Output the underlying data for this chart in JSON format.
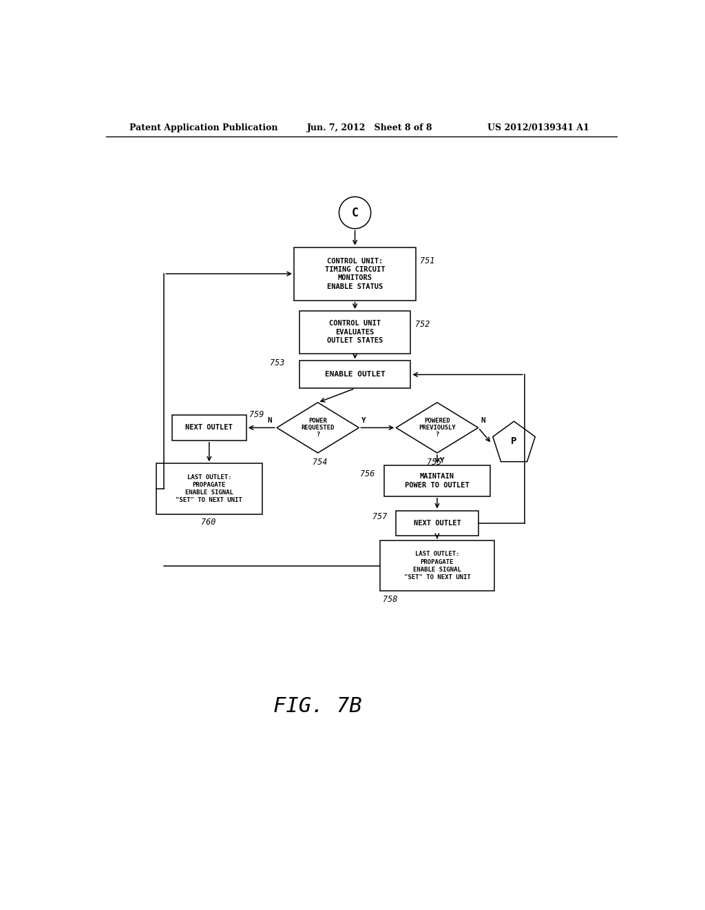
{
  "bg_color": "#ffffff",
  "header_left": "Patent Application Publication",
  "header_mid": "Jun. 7, 2012   Sheet 8 of 8",
  "header_right": "US 2012/0139341 A1",
  "fig_label": "FIG. 7B",
  "node_751_text": "CONTROL UNIT:\nTIMING CIRCUIT\nMONITORS\nENABLE STATUS",
  "node_752_text": "CONTROL UNIT\nEVALUATES\nOUTLET STATES",
  "node_753_text": "ENABLE OUTLET",
  "node_754_text": "POWER\nREQUESTED\n?",
  "node_755_text": "POWERED\nPREVIOUSLY\n?",
  "node_756_text": "MAINTAIN\nPOWER TO OUTLET",
  "node_757r_text": "NEXT OUTLET",
  "node_758_text": "LAST OUTLET:\nPROPAGATE\nENABLE SIGNAL\n\"SET\" TO NEXT UNIT",
  "node_759l_text": "NEXT OUTLET",
  "node_760_text": "LAST OUTLET:\nPROPAGATE\nENABLE SIGNAL\n\"SET\" TO NEXT UNIT",
  "node_P_text": "P",
  "node_C_text": "C",
  "lw": 1.1
}
